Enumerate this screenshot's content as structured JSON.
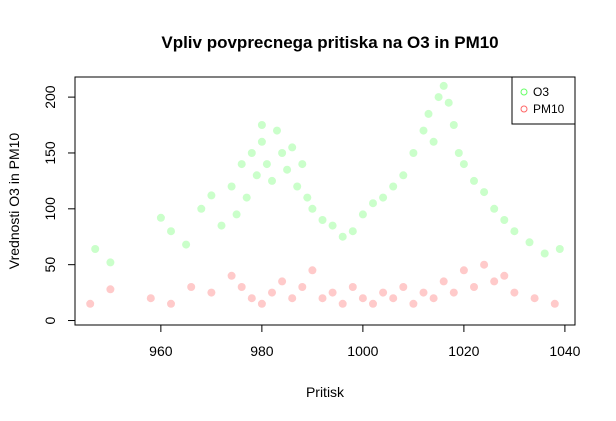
{
  "chart_data": {
    "type": "scatter",
    "title": "Vpliv povprecnega pritiska na O3 in PM10",
    "xlabel": "Pritisk",
    "ylabel": "Vrednosti O3 in PM10",
    "xlim": [
      943,
      1042
    ],
    "ylim": [
      -4,
      218
    ],
    "x_ticks": [
      960,
      980,
      1000,
      1020,
      1040
    ],
    "y_ticks": [
      0,
      50,
      100,
      150,
      200
    ],
    "grid": false,
    "legend_position": "top-right",
    "series": [
      {
        "name": "O3",
        "color": "#66FF66",
        "points": [
          [
            947,
            64
          ],
          [
            950,
            52
          ],
          [
            960,
            92
          ],
          [
            962,
            80
          ],
          [
            965,
            68
          ],
          [
            968,
            100
          ],
          [
            970,
            112
          ],
          [
            972,
            85
          ],
          [
            974,
            120
          ],
          [
            975,
            95
          ],
          [
            976,
            140
          ],
          [
            977,
            110
          ],
          [
            978,
            150
          ],
          [
            979,
            130
          ],
          [
            980,
            175
          ],
          [
            980,
            160
          ],
          [
            981,
            140
          ],
          [
            982,
            125
          ],
          [
            983,
            170
          ],
          [
            984,
            150
          ],
          [
            985,
            135
          ],
          [
            986,
            155
          ],
          [
            987,
            120
          ],
          [
            988,
            140
          ],
          [
            989,
            110
          ],
          [
            990,
            100
          ],
          [
            992,
            90
          ],
          [
            994,
            85
          ],
          [
            996,
            75
          ],
          [
            998,
            80
          ],
          [
            1000,
            95
          ],
          [
            1002,
            105
          ],
          [
            1004,
            110
          ],
          [
            1006,
            120
          ],
          [
            1008,
            130
          ],
          [
            1010,
            150
          ],
          [
            1012,
            170
          ],
          [
            1013,
            185
          ],
          [
            1014,
            160
          ],
          [
            1015,
            200
          ],
          [
            1016,
            210
          ],
          [
            1017,
            195
          ],
          [
            1018,
            175
          ],
          [
            1019,
            150
          ],
          [
            1020,
            140
          ],
          [
            1022,
            125
          ],
          [
            1024,
            115
          ],
          [
            1026,
            100
          ],
          [
            1028,
            90
          ],
          [
            1030,
            80
          ],
          [
            1033,
            70
          ],
          [
            1036,
            60
          ],
          [
            1039,
            64
          ]
        ]
      },
      {
        "name": "PM10",
        "color": "#FF6666",
        "points": [
          [
            946,
            15
          ],
          [
            950,
            28
          ],
          [
            958,
            20
          ],
          [
            962,
            15
          ],
          [
            966,
            30
          ],
          [
            970,
            25
          ],
          [
            974,
            40
          ],
          [
            976,
            30
          ],
          [
            978,
            20
          ],
          [
            980,
            15
          ],
          [
            982,
            25
          ],
          [
            984,
            35
          ],
          [
            986,
            20
          ],
          [
            988,
            30
          ],
          [
            990,
            45
          ],
          [
            992,
            20
          ],
          [
            994,
            25
          ],
          [
            996,
            15
          ],
          [
            998,
            30
          ],
          [
            1000,
            20
          ],
          [
            1002,
            15
          ],
          [
            1004,
            25
          ],
          [
            1006,
            20
          ],
          [
            1008,
            30
          ],
          [
            1010,
            15
          ],
          [
            1012,
            25
          ],
          [
            1014,
            20
          ],
          [
            1016,
            35
          ],
          [
            1018,
            25
          ],
          [
            1020,
            45
          ],
          [
            1022,
            30
          ],
          [
            1024,
            50
          ],
          [
            1026,
            35
          ],
          [
            1028,
            40
          ],
          [
            1030,
            25
          ],
          [
            1034,
            20
          ],
          [
            1038,
            15
          ]
        ]
      }
    ]
  }
}
